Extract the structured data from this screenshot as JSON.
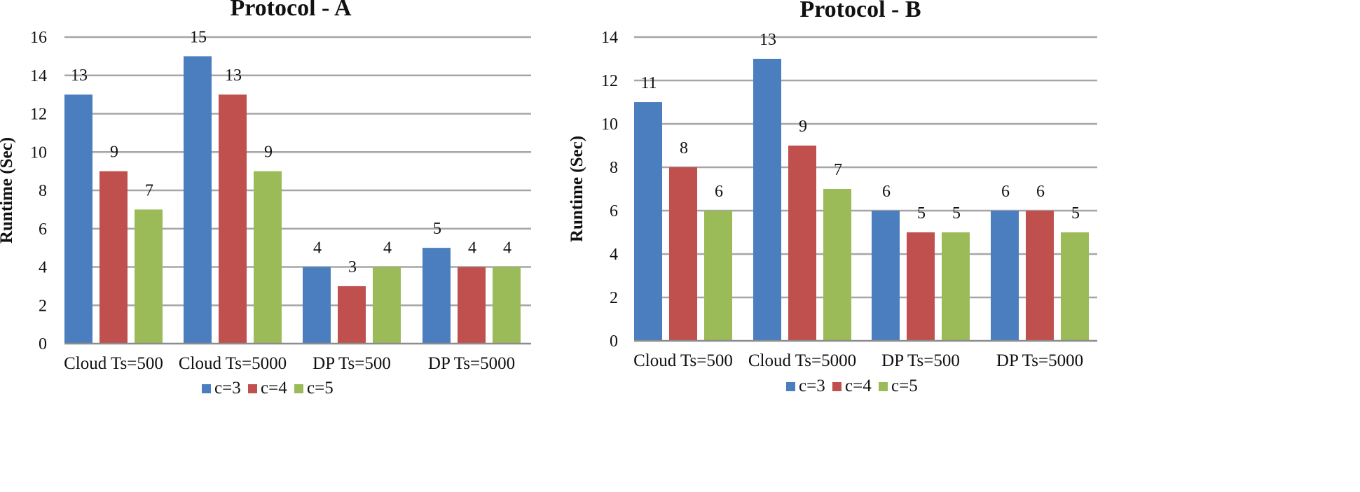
{
  "colors": {
    "c=3": "#4a7ebf",
    "c=4": "#c0504d",
    "c=5": "#9bbb59",
    "grid": "#a6a6a6",
    "axis": "#8c8c8c"
  },
  "chart_data": [
    {
      "type": "bar",
      "title": "Protocol - A",
      "xlabel": "",
      "ylabel": "Runtime (Sec)",
      "ylim": [
        0,
        16
      ],
      "yticks": [
        "0",
        "2",
        "4",
        "6",
        "8",
        "10",
        "12",
        "14",
        "16"
      ],
      "grid": true,
      "legend_position": "bottom",
      "categories": [
        "Cloud Ts=500",
        "Cloud Ts=5000",
        "DP Ts=500",
        "DP Ts=5000"
      ],
      "series": [
        {
          "name": "c=3",
          "values": [
            13,
            15,
            4,
            5
          ],
          "labels": [
            "13",
            "15",
            "4",
            "5"
          ]
        },
        {
          "name": "c=4",
          "values": [
            9,
            13,
            3,
            4
          ],
          "labels": [
            "9",
            "13",
            "3",
            "4"
          ]
        },
        {
          "name": "c=5",
          "values": [
            7,
            9,
            4,
            4
          ],
          "labels": [
            "7",
            "9",
            "4",
            "4"
          ]
        }
      ]
    },
    {
      "type": "bar",
      "title": "Protocol - B",
      "xlabel": "",
      "ylabel": "Runtime (Sec)",
      "ylim": [
        0,
        14
      ],
      "yticks": [
        "0",
        "2",
        "4",
        "6",
        "8",
        "10",
        "12",
        "14"
      ],
      "grid": true,
      "legend_position": "bottom",
      "categories": [
        "Cloud Ts=500",
        "Cloud Ts=5000",
        "DP Ts=500",
        "DP Ts=5000"
      ],
      "series": [
        {
          "name": "c=3",
          "values": [
            11,
            13,
            6,
            6
          ],
          "labels": [
            "11",
            "13",
            "6",
            "6"
          ]
        },
        {
          "name": "c=4",
          "values": [
            8,
            9,
            5,
            6
          ],
          "labels": [
            "8",
            "9",
            "5",
            "6"
          ]
        },
        {
          "name": "c=5",
          "values": [
            6,
            7,
            5,
            5
          ],
          "labels": [
            "6",
            "7",
            "5",
            "5"
          ]
        }
      ]
    }
  ]
}
